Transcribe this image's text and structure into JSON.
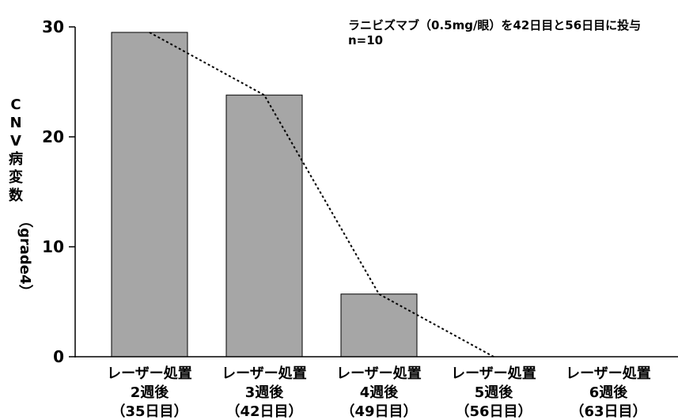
{
  "chart_data": {
    "type": "bar",
    "categories": [
      [
        "レーザー処置",
        "2週後",
        "（35日目）"
      ],
      [
        "レーザー処置",
        "3週後",
        "（42日目）"
      ],
      [
        "レーザー処置",
        "4週後",
        "（49日目）"
      ],
      [
        "レーザー処置",
        "5週後",
        "（56日目）"
      ],
      [
        "レーザー処置",
        "6週後",
        "（63日目）"
      ]
    ],
    "values": [
      29.5,
      23.8,
      5.7,
      0,
      0
    ],
    "line_values": [
      29.5,
      23.8,
      5.7,
      0,
      null
    ],
    "ylabel": [
      "C",
      "N",
      "V",
      "病",
      "変",
      "数",
      "（grade4）"
    ],
    "ylim": [
      0,
      30
    ],
    "yticks": [
      0,
      10,
      20,
      30
    ],
    "annotations": [
      "ラニビズマブ（0.5mg/眼）を42日目と56日目に投与",
      "n=10"
    ],
    "grid": false,
    "bar_color": "#a6a6a6",
    "bar_edge_color": "#000000",
    "line_style": "dotted"
  }
}
